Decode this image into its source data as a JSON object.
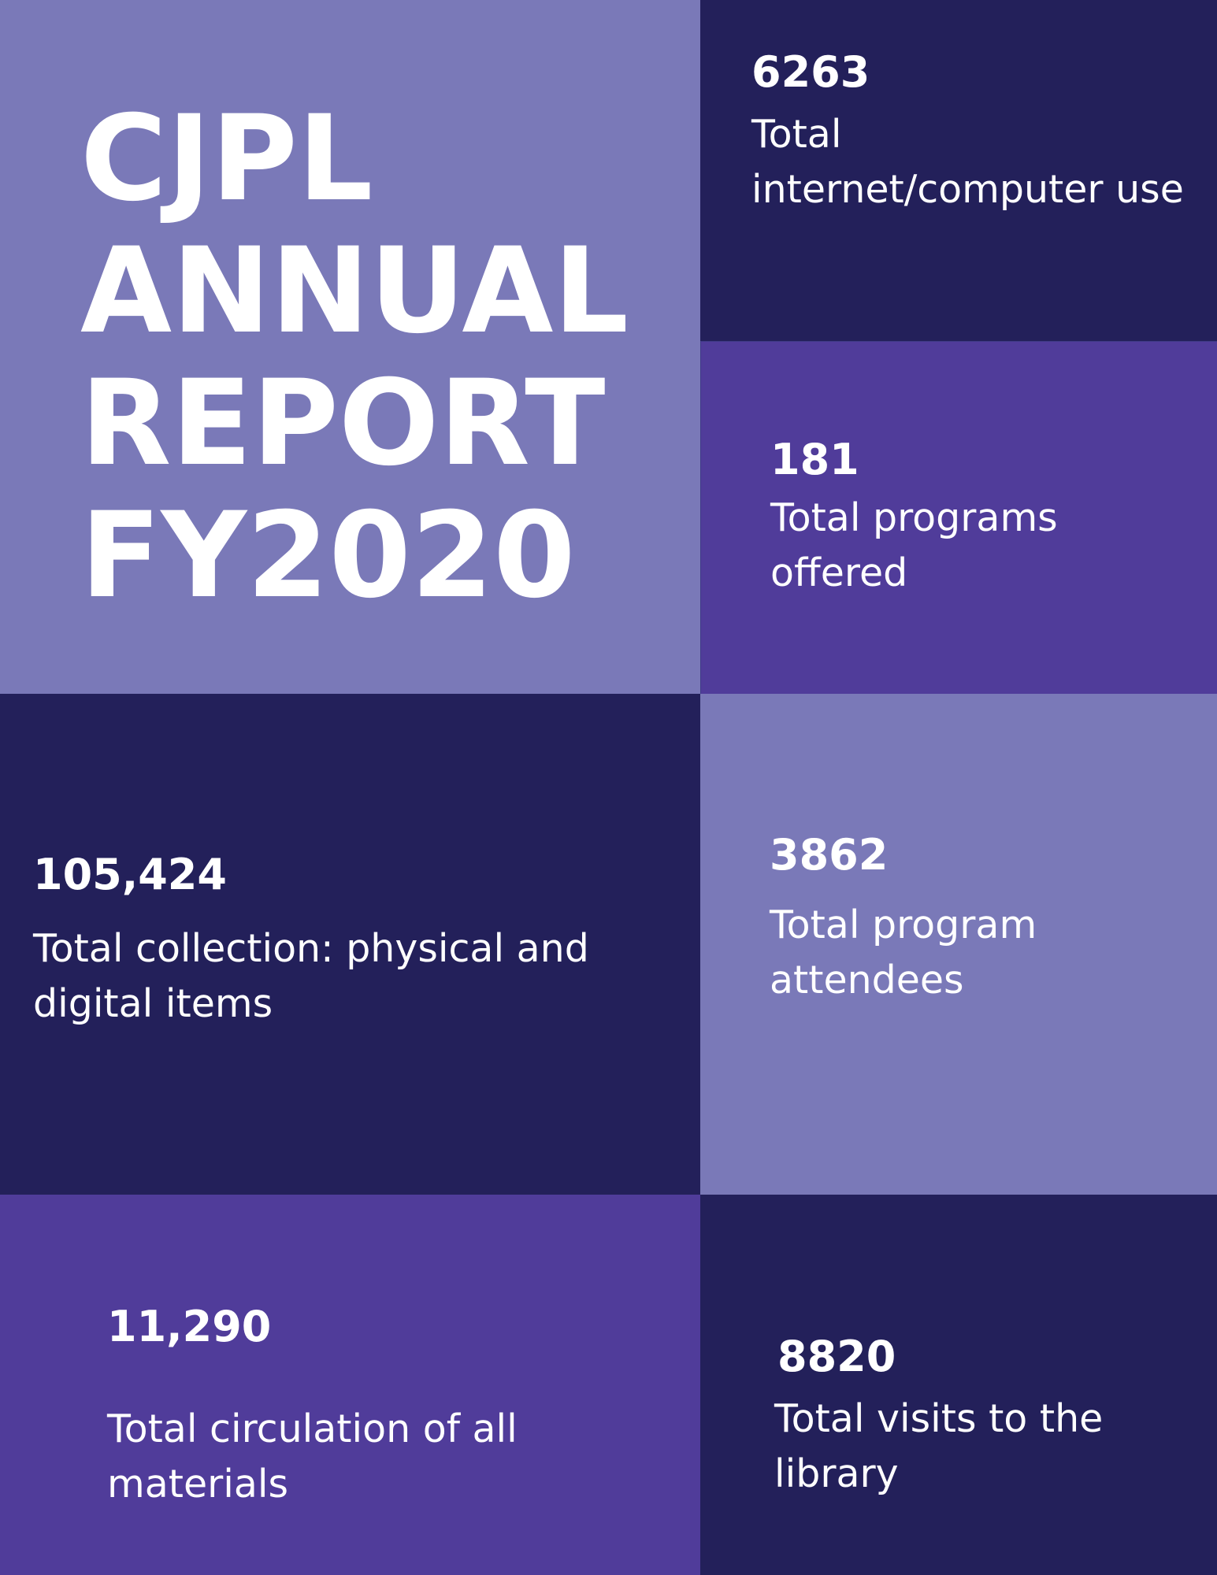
{
  "title": "CJPL\nANNUAL\nREPORT\nFY2020",
  "stats": {
    "internet": {
      "number": "6263",
      "label": "Total internet/computer use"
    },
    "programs": {
      "number": "181",
      "label": "Total programs offered"
    },
    "collection": {
      "number": "105,424",
      "label": "Total collection: physical and digital items"
    },
    "attendees": {
      "number": "3862",
      "label": "Total program attendees"
    },
    "circulation": {
      "number": "11,290",
      "label": "Total circulation of all materials"
    },
    "visits": {
      "number": "8820",
      "label": "Total visits to the library"
    }
  },
  "colors": {
    "lavender": "#7a79b8",
    "navy": "#23205a",
    "purple": "#503c9a",
    "text": "#ffffff"
  }
}
